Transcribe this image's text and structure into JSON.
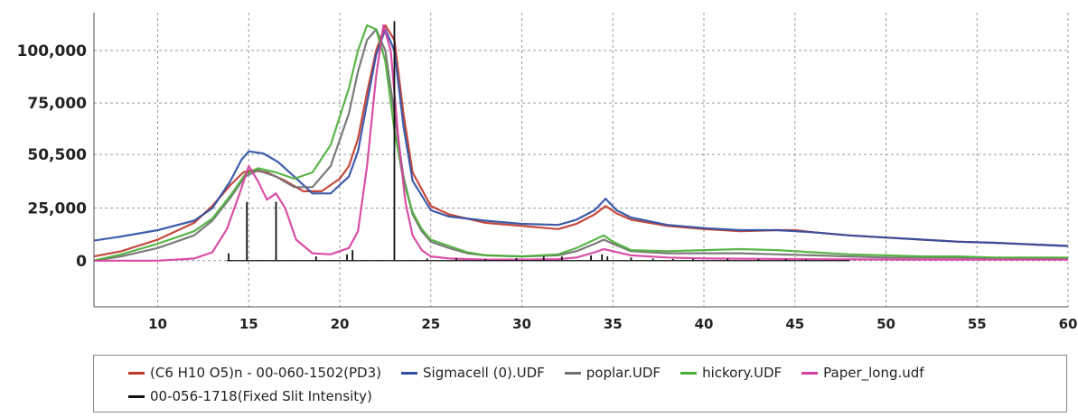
{
  "chart_data": {
    "type": "line",
    "title": "",
    "xlabel": "",
    "ylabel": "",
    "xlim": [
      6.5,
      60
    ],
    "ylim": [
      -22000,
      118000
    ],
    "x_ticks": [
      10,
      15,
      20,
      25,
      30,
      35,
      40,
      45,
      50,
      55,
      60
    ],
    "y_ticks": [
      {
        "value": 0,
        "label": "0"
      },
      {
        "value": 25000,
        "label": "25,000"
      },
      {
        "value": 50500,
        "label": "50,500"
      },
      {
        "value": 75000,
        "label": "75,000"
      },
      {
        "value": 100000,
        "label": "100,000"
      }
    ],
    "grid": true,
    "legend_position": "bottom",
    "series": [
      {
        "name": "(C6 H10 O5)n - 00-060-1502(PD3)",
        "color": "#c0392b",
        "x": [
          6.5,
          8,
          10,
          12,
          13,
          14,
          14.7,
          15.2,
          16,
          17,
          18,
          19,
          20,
          20.5,
          21,
          21.5,
          22,
          22.5,
          23,
          23.5,
          24,
          25,
          26,
          28,
          30,
          32,
          33,
          34,
          34.6,
          35.2,
          36,
          38,
          40,
          42,
          44,
          45,
          46,
          48,
          50,
          52,
          54,
          56,
          58,
          60
        ],
        "values": [
          2000,
          4500,
          10000,
          18000,
          26000,
          36000,
          42000,
          43000,
          42000,
          38000,
          33000,
          33000,
          39000,
          45000,
          58000,
          80000,
          100000,
          112000,
          105000,
          70000,
          42000,
          26000,
          22000,
          18000,
          16500,
          15000,
          17500,
          22000,
          26000,
          22500,
          19500,
          16500,
          15000,
          14000,
          14500,
          14500,
          13500,
          12000,
          11000,
          10000,
          9000,
          8500,
          7700,
          7000
        ]
      },
      {
        "name": "Sigmacell (0).UDF",
        "color": "#2e4fa3",
        "x": [
          6.5,
          8,
          10,
          12,
          13,
          14,
          14.6,
          15,
          15.8,
          16.6,
          17.5,
          18.5,
          19.5,
          20.5,
          21,
          21.5,
          22,
          22.5,
          23,
          23.5,
          24,
          25,
          26,
          28,
          30,
          32,
          33,
          34,
          34.6,
          35.2,
          36,
          38,
          40,
          42,
          44,
          45,
          46,
          48,
          50,
          52,
          54,
          56,
          58,
          60
        ],
        "values": [
          9500,
          11500,
          14500,
          19000,
          25000,
          38000,
          48000,
          52000,
          51000,
          47000,
          40000,
          32000,
          32000,
          40000,
          52000,
          75000,
          98000,
          110000,
          100000,
          64000,
          38000,
          24000,
          21000,
          19000,
          17500,
          17000,
          19500,
          24000,
          29500,
          24000,
          20500,
          17000,
          15500,
          14500,
          14500,
          14000,
          13500,
          12000,
          11000,
          10000,
          9000,
          8500,
          7700,
          7000
        ]
      },
      {
        "name": "poplar.UDF",
        "color": "#707070",
        "x": [
          6.5,
          8,
          10,
          12,
          13,
          14,
          14.8,
          15.5,
          16.5,
          17.5,
          18.5,
          19.5,
          20.5,
          21,
          21.5,
          22,
          22.5,
          23,
          23.5,
          24,
          24.5,
          25,
          26,
          27,
          28,
          30,
          32,
          33,
          34,
          34.5,
          35,
          36,
          38,
          40,
          42,
          44,
          46,
          48,
          50,
          52,
          54,
          56,
          58,
          60
        ],
        "values": [
          0,
          2000,
          6000,
          12000,
          19000,
          30000,
          40000,
          43000,
          40000,
          35000,
          35000,
          45000,
          70000,
          90000,
          105000,
          110000,
          100000,
          70000,
          40000,
          22000,
          14000,
          9000,
          6000,
          3500,
          2500,
          2000,
          2500,
          4500,
          8000,
          10000,
          8000,
          4500,
          3500,
          3500,
          3500,
          3000,
          2500,
          2000,
          1500,
          1500,
          1500,
          1000,
          1000,
          1000
        ]
      },
      {
        "name": "hickory.UDF",
        "color": "#4caf3a",
        "x": [
          6.5,
          8,
          10,
          12,
          13,
          14,
          14.8,
          15.5,
          16.5,
          17.5,
          18.5,
          19.5,
          20.5,
          21,
          21.5,
          22,
          22.5,
          23,
          23.5,
          24,
          24.5,
          25,
          26,
          27,
          28,
          30,
          32,
          33,
          34,
          34.5,
          35,
          36,
          38,
          40,
          42,
          44,
          46,
          48,
          50,
          52,
          54,
          56,
          58,
          60
        ],
        "values": [
          0,
          3000,
          8000,
          14000,
          20000,
          31000,
          41000,
          44000,
          42000,
          39000,
          42000,
          55000,
          82000,
          100000,
          112000,
          110000,
          95000,
          62000,
          38000,
          23000,
          15000,
          10000,
          7000,
          4000,
          2500,
          2000,
          3000,
          6000,
          10000,
          12000,
          9000,
          5000,
          4500,
          5000,
          5500,
          5000,
          4000,
          3000,
          2500,
          2000,
          2000,
          1500,
          1500,
          1500
        ]
      },
      {
        "name": "Paper_long.udf",
        "color": "#d63fa0",
        "x": [
          6.5,
          8,
          10,
          12,
          13,
          13.8,
          14.5,
          15,
          15.5,
          16,
          16.5,
          17,
          17.6,
          18.5,
          19.5,
          20.5,
          21,
          21.5,
          22,
          22.4,
          22.8,
          23.2,
          23.6,
          24,
          24.5,
          25,
          26,
          28,
          30,
          32,
          33,
          34,
          34.5,
          35,
          36,
          38,
          40,
          44,
          48,
          52,
          56,
          60
        ],
        "values": [
          0,
          0,
          0,
          1000,
          4000,
          15000,
          32000,
          45000,
          38000,
          29000,
          32000,
          25000,
          10000,
          3500,
          3000,
          6000,
          14000,
          45000,
          88000,
          112000,
          100000,
          60000,
          28000,
          12000,
          5000,
          2000,
          1000,
          500,
          500,
          700,
          1500,
          4000,
          5500,
          4500,
          2500,
          1500,
          1000,
          800,
          600,
          500,
          500,
          500
        ]
      },
      {
        "name": "00-056-1718(Fixed Slit Intensity)",
        "color": "#111111",
        "type": "stick",
        "x": [
          13.9,
          14.9,
          16.5,
          18.7,
          20.4,
          20.7,
          23.0,
          24.8,
          26.4,
          28.0,
          29.7,
          31.2,
          32.2,
          33.8,
          34.4,
          34.7,
          36.0,
          37.2,
          38.3,
          39.4,
          41.3,
          43.0,
          44.5,
          45.6
        ],
        "values": [
          3500,
          28000,
          28000,
          2000,
          3000,
          5000,
          114000,
          1000,
          1200,
          800,
          1200,
          2000,
          2000,
          2500,
          3000,
          2000,
          1500,
          1000,
          800,
          800,
          1000,
          800,
          800,
          600
        ]
      }
    ]
  }
}
